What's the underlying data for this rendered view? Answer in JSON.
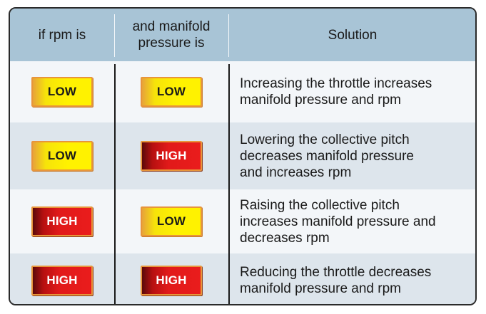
{
  "header": {
    "col1": "if rpm is",
    "col2_line1": "and manifold",
    "col2_line2": "pressure is",
    "col3": "Solution"
  },
  "rows": [
    {
      "rpm": "LOW",
      "manifold": "LOW",
      "solution_lines": [
        "Increasing the throttle increases",
        "manifold pressure and rpm"
      ]
    },
    {
      "rpm": "LOW",
      "manifold": "HIGH",
      "solution_lines": [
        "Lowering the collective pitch",
        "decreases manifold pressure",
        "and increases rpm"
      ]
    },
    {
      "rpm": "HIGH",
      "manifold": "LOW",
      "solution_lines": [
        "Raising the collective pitch",
        "increases manifold pressure and",
        "decreases rpm"
      ]
    },
    {
      "rpm": "HIGH",
      "manifold": "HIGH",
      "solution_lines": [
        "Reducing the throttle decreases",
        "manifold pressure and rpm"
      ]
    }
  ],
  "colors": {
    "header_bg": "#a8c4d6",
    "row_light": "#f3f6f9",
    "row_dark": "#dde5ec",
    "low_badge": "#fff200",
    "high_badge": "#e11a1a",
    "badge_border": "#e8953a"
  }
}
